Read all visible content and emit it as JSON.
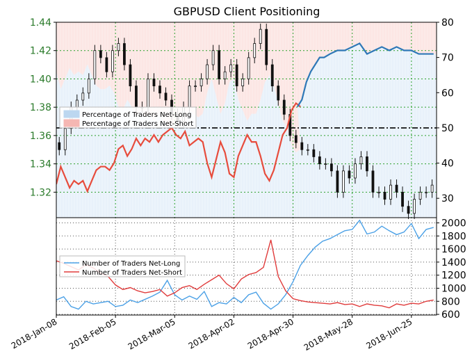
{
  "chart_data": [
    {
      "type": "line",
      "title": "GBPUSD Client Positioning",
      "panel": "upper",
      "x_ticks": [
        "2018-Jan-08",
        "2018-Feb-05",
        "2018-Mar-05",
        "2018-Apr-02",
        "2018-Apr-30",
        "2018-May-28",
        "2018-Jun-25"
      ],
      "xlim_weeks": [
        0,
        25.7
      ],
      "left_axis": {
        "label": "",
        "ticks": [
          1.32,
          1.34,
          1.36,
          1.38,
          1.4,
          1.42,
          1.44
        ],
        "ylim": [
          1.302,
          1.44
        ],
        "tick_color": "#2a7a2a"
      },
      "right_axis": {
        "label": "",
        "ticks": [
          30,
          40,
          50,
          60,
          70,
          80
        ],
        "ylim": [
          24.5,
          80
        ]
      },
      "reference_line": {
        "value": 50,
        "style": "dash-dot"
      },
      "legend": {
        "placement": "middle-left",
        "entries": [
          {
            "label": "Percentage of Traders Net-Long",
            "color": "#bcd7f0"
          },
          {
            "label": "Percentage of Traders Net-Short",
            "color": "#f5b7b3"
          }
        ]
      },
      "series": [
        {
          "name": "Percentage of Traders Net-Long",
          "color": "#2e78b7",
          "x": [
            16.3,
            16.6,
            16.9,
            17.2,
            17.5,
            17.8,
            18.1,
            18.5,
            19.0,
            19.5,
            20.0,
            20.5,
            21.0,
            21.5,
            22.0,
            22.5,
            23.0,
            23.5,
            24.0,
            24.5,
            25.0,
            25.5
          ],
          "values": [
            56,
            58,
            63,
            66,
            68,
            70,
            70,
            71,
            72,
            72,
            73,
            74,
            71,
            72,
            73,
            72,
            73,
            72,
            72,
            71,
            71,
            71
          ]
        },
        {
          "name": "Percentage of Traders Net-Short",
          "color": "#e74c3c",
          "x": [
            0,
            0.3,
            0.6,
            0.9,
            1.2,
            1.5,
            1.8,
            2.1,
            2.4,
            2.7,
            3.0,
            3.3,
            3.6,
            3.9,
            4.2,
            4.5,
            4.8,
            5.1,
            5.4,
            5.7,
            6.0,
            6.3,
            6.6,
            6.9,
            7.2,
            7.5,
            7.8,
            8.1,
            8.4,
            8.7,
            9.0,
            9.3,
            9.6,
            9.9,
            10.2,
            10.5,
            10.8,
            11.1,
            11.4,
            11.7,
            12.0,
            12.3,
            12.6,
            12.9,
            13.2,
            13.5,
            13.8,
            14.1,
            14.4,
            14.7,
            15.0,
            15.3,
            15.6,
            15.9,
            16.2,
            16.5
          ],
          "values": [
            34,
            39,
            36,
            33,
            35,
            34,
            35,
            32,
            35,
            38,
            39,
            39,
            38,
            40,
            44,
            45,
            42,
            44,
            47,
            45,
            47,
            46,
            48,
            46,
            48,
            49,
            50,
            48,
            47,
            49,
            45,
            46,
            47,
            46,
            40,
            36,
            41,
            46,
            43,
            37,
            36,
            42,
            45,
            48,
            46,
            46,
            42,
            37,
            35,
            38,
            43,
            48,
            50,
            55,
            57,
            56
          ]
        }
      ],
      "price": {
        "name": "GBPUSD",
        "x": [
          0,
          0.4,
          0.8,
          1.2,
          1.6,
          2.0,
          2.4,
          2.8,
          3.2,
          3.6,
          4.0,
          4.4,
          4.8,
          5.2,
          5.6,
          6.0,
          6.4,
          6.8,
          7.2,
          7.6,
          8.0,
          8.4,
          8.8,
          9.2,
          9.6,
          10.0,
          10.4,
          10.8,
          11.2,
          11.6,
          12.0,
          12.4,
          12.8,
          13.2,
          13.6,
          14.0,
          14.4,
          14.8,
          15.2,
          15.6,
          16.0,
          16.4,
          16.8,
          17.2,
          17.6,
          18.0,
          18.4,
          18.8,
          19.2,
          19.6,
          20.0,
          20.4,
          20.8,
          21.2,
          21.6,
          22.0,
          22.4,
          22.8,
          23.2,
          23.6,
          24.0,
          24.4,
          24.8,
          25.2,
          25.6
        ],
        "values": [
          1.355,
          1.35,
          1.365,
          1.38,
          1.385,
          1.39,
          1.4,
          1.42,
          1.415,
          1.405,
          1.42,
          1.425,
          1.41,
          1.395,
          1.38,
          1.38,
          1.4,
          1.395,
          1.39,
          1.385,
          1.375,
          1.37,
          1.38,
          1.395,
          1.395,
          1.4,
          1.41,
          1.42,
          1.4,
          1.405,
          1.41,
          1.395,
          1.4,
          1.415,
          1.425,
          1.435,
          1.41,
          1.395,
          1.385,
          1.375,
          1.36,
          1.355,
          1.35,
          1.35,
          1.345,
          1.34,
          1.34,
          1.335,
          1.32,
          1.335,
          1.33,
          1.34,
          1.345,
          1.335,
          1.32,
          1.32,
          1.315,
          1.325,
          1.32,
          1.31,
          1.305,
          1.315,
          1.32,
          1.32,
          1.325
        ]
      }
    },
    {
      "type": "line",
      "panel": "lower",
      "right_axis": {
        "label": "",
        "ticks": [
          600,
          800,
          1000,
          1200,
          1400,
          1600,
          1800,
          2000
        ],
        "ylim": [
          590,
          2080
        ]
      },
      "legend": {
        "placement": "middle-left",
        "entries": [
          {
            "label": "Number of Traders Net-Long",
            "color": "#4aa0e6"
          },
          {
            "label": "Number of Traders Net-Short",
            "color": "#e03b3b"
          }
        ]
      },
      "series": [
        {
          "name": "Number of Traders Net-Long",
          "color": "#4aa0e6",
          "x": [
            0,
            0.5,
            1.0,
            1.5,
            2.0,
            2.5,
            3.0,
            3.5,
            4.0,
            4.5,
            5.0,
            5.5,
            6.0,
            6.5,
            7.0,
            7.5,
            8.0,
            8.5,
            9.0,
            9.5,
            10.0,
            10.5,
            11.0,
            11.5,
            12.0,
            12.5,
            13.0,
            13.5,
            14.0,
            14.5,
            15.0,
            15.5,
            16.0,
            16.5,
            17.0,
            17.5,
            18.0,
            18.5,
            19.0,
            19.5,
            20.0,
            20.5,
            21.0,
            21.5,
            22.0,
            22.5,
            23.0,
            23.5,
            24.0,
            24.5,
            25.0,
            25.5
          ],
          "values": [
            820,
            870,
            720,
            680,
            800,
            760,
            780,
            800,
            720,
            740,
            820,
            780,
            830,
            880,
            940,
            1120,
            900,
            820,
            880,
            830,
            950,
            720,
            780,
            760,
            860,
            780,
            900,
            940,
            770,
            680,
            760,
            900,
            1100,
            1350,
            1500,
            1630,
            1720,
            1760,
            1820,
            1880,
            1900,
            2040,
            1830,
            1860,
            1950,
            1880,
            1820,
            1860,
            1990,
            1760,
            1900,
            1930
          ]
        },
        {
          "name": "Number of Traders Net-Short",
          "color": "#e03b3b",
          "x": [
            0,
            0.5,
            1.0,
            1.5,
            2.0,
            2.5,
            3.0,
            3.5,
            4.0,
            4.5,
            5.0,
            5.5,
            6.0,
            6.5,
            7.0,
            7.5,
            8.0,
            8.5,
            9.0,
            9.5,
            10.0,
            10.5,
            11.0,
            11.5,
            12.0,
            12.5,
            13.0,
            13.5,
            14.0,
            14.5,
            15.0,
            15.5,
            16.0,
            16.5,
            17.0,
            17.5,
            18.0,
            18.5,
            19.0,
            19.5,
            20.0,
            20.5,
            21.0,
            21.5,
            22.0,
            22.5,
            23.0,
            23.5,
            24.0,
            24.5,
            25.0,
            25.5
          ],
          "values": [
            1420,
            1380,
            1330,
            1280,
            1360,
            1310,
            1230,
            1180,
            1050,
            980,
            1010,
            960,
            930,
            950,
            980,
            880,
            930,
            1010,
            1040,
            980,
            1060,
            1130,
            1200,
            1070,
            990,
            1140,
            1210,
            1240,
            1320,
            1740,
            1180,
            960,
            840,
            810,
            790,
            780,
            770,
            760,
            780,
            750,
            760,
            720,
            760,
            740,
            730,
            700,
            760,
            740,
            770,
            760,
            800,
            820
          ]
        }
      ]
    }
  ]
}
